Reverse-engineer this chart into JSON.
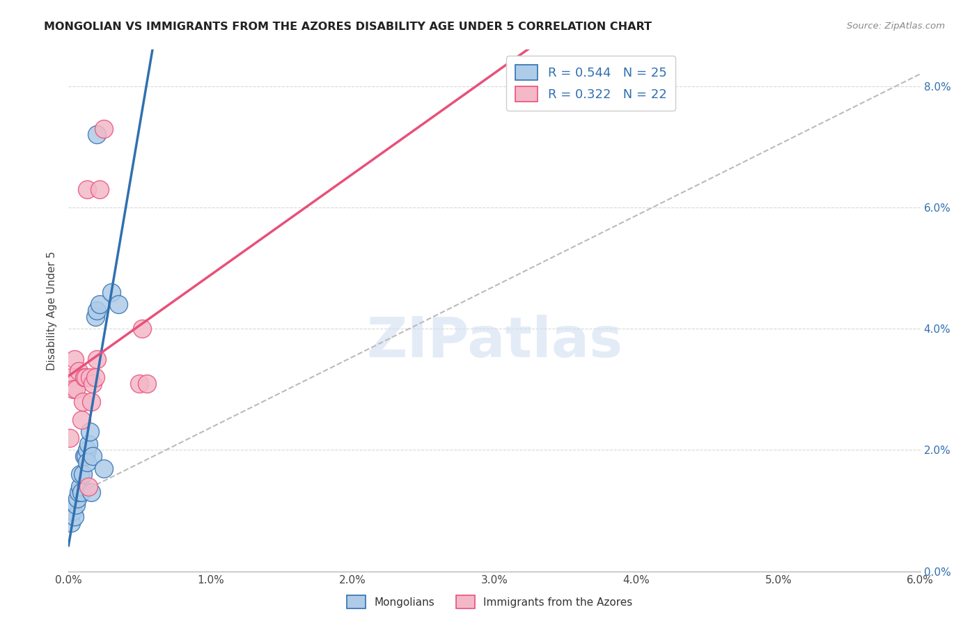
{
  "title": "MONGOLIAN VS IMMIGRANTS FROM THE AZORES DISABILITY AGE UNDER 5 CORRELATION CHART",
  "source": "Source: ZipAtlas.com",
  "ylabel": "Disability Age Under 5",
  "xlim": [
    0.0,
    0.06
  ],
  "ylim": [
    0.0,
    0.086
  ],
  "mongolian_R": 0.544,
  "mongolian_N": 25,
  "azores_R": 0.322,
  "azores_N": 22,
  "mongolian_color": "#aecce8",
  "azores_color": "#f4b8c8",
  "mongolian_line_color": "#3070b0",
  "azores_line_color": "#e8507a",
  "watermark": "ZIPatlas",
  "mongolian_x": [
    0.0002,
    0.0003,
    0.0004,
    0.0005,
    0.0006,
    0.0007,
    0.0008,
    0.0008,
    0.0009,
    0.001,
    0.0011,
    0.0012,
    0.0013,
    0.0013,
    0.0014,
    0.0015,
    0.0016,
    0.0017,
    0.0019,
    0.002,
    0.002,
    0.0022,
    0.0025,
    0.003,
    0.0035
  ],
  "mongolian_y": [
    0.008,
    0.01,
    0.009,
    0.011,
    0.012,
    0.013,
    0.014,
    0.016,
    0.013,
    0.016,
    0.019,
    0.019,
    0.02,
    0.018,
    0.021,
    0.023,
    0.013,
    0.019,
    0.042,
    0.043,
    0.072,
    0.044,
    0.017,
    0.046,
    0.044
  ],
  "azores_x": [
    0.0001,
    0.0002,
    0.0003,
    0.0004,
    0.0005,
    0.0007,
    0.0009,
    0.001,
    0.0011,
    0.0012,
    0.0013,
    0.0014,
    0.0015,
    0.0016,
    0.0017,
    0.0019,
    0.002,
    0.0022,
    0.0025,
    0.005,
    0.0052,
    0.0055
  ],
  "azores_y": [
    0.022,
    0.032,
    0.03,
    0.035,
    0.03,
    0.033,
    0.025,
    0.028,
    0.032,
    0.032,
    0.063,
    0.014,
    0.032,
    0.028,
    0.031,
    0.032,
    0.035,
    0.063,
    0.073,
    0.031,
    0.04,
    0.031
  ],
  "background_color": "#ffffff",
  "grid_color": "#d8d8d8"
}
